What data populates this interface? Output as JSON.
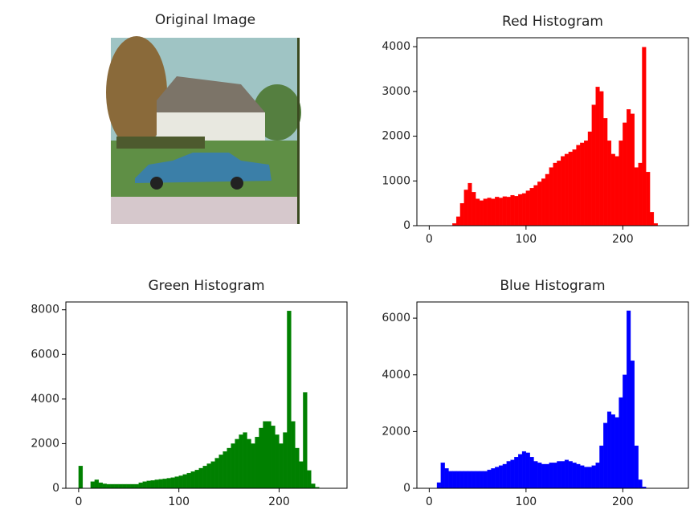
{
  "chart_data": [
    {
      "type": "image",
      "title": "Original Image"
    },
    {
      "type": "histogram",
      "title": "Red Histogram",
      "color": "#ff0000",
      "bins": [
        0,
        4,
        8,
        12,
        16,
        20,
        24,
        28,
        32,
        36,
        40,
        44,
        48,
        52,
        56,
        60,
        64,
        68,
        72,
        76,
        80,
        84,
        88,
        92,
        96,
        100,
        104,
        108,
        112,
        116,
        120,
        124,
        128,
        132,
        136,
        140,
        144,
        148,
        152,
        156,
        160,
        164,
        168,
        172,
        176,
        180,
        184,
        188,
        192,
        196,
        200,
        204,
        208,
        212,
        216,
        220,
        224,
        228,
        232,
        236,
        240,
        244,
        248,
        252,
        256
      ],
      "values": [
        0,
        0,
        0,
        0,
        0,
        0,
        50,
        200,
        500,
        800,
        950,
        750,
        600,
        560,
        600,
        620,
        600,
        640,
        620,
        650,
        640,
        680,
        660,
        700,
        720,
        780,
        840,
        900,
        980,
        1050,
        1150,
        1300,
        1400,
        1450,
        1550,
        1600,
        1650,
        1700,
        1800,
        1850,
        1900,
        2100,
        2700,
        3100,
        3000,
        2400,
        1900,
        1600,
        1550,
        1900,
        2300,
        2600,
        2500,
        1300,
        1400,
        3990,
        1200,
        300,
        50,
        0,
        0,
        0,
        0,
        0
      ],
      "xlim": [
        -12.75,
        267.75
      ],
      "xticks": [
        0,
        100,
        200
      ],
      "ylim": [
        0,
        4200
      ],
      "yticks": [
        0,
        1000,
        2000,
        3000,
        4000
      ]
    },
    {
      "type": "histogram",
      "title": "Green Histogram",
      "color": "#008000",
      "bins": [
        0,
        4,
        8,
        12,
        16,
        20,
        24,
        28,
        32,
        36,
        40,
        44,
        48,
        52,
        56,
        60,
        64,
        68,
        72,
        76,
        80,
        84,
        88,
        92,
        96,
        100,
        104,
        108,
        112,
        116,
        120,
        124,
        128,
        132,
        136,
        140,
        144,
        148,
        152,
        156,
        160,
        164,
        168,
        172,
        176,
        180,
        184,
        188,
        192,
        196,
        200,
        204,
        208,
        212,
        216,
        220,
        224,
        228,
        232,
        236,
        240,
        244,
        248,
        252,
        256
      ],
      "values": [
        1000,
        0,
        0,
        300,
        380,
        250,
        200,
        180,
        180,
        180,
        180,
        180,
        180,
        180,
        180,
        250,
        300,
        330,
        350,
        380,
        400,
        420,
        450,
        480,
        520,
        560,
        620,
        680,
        750,
        820,
        900,
        1000,
        1100,
        1200,
        1350,
        1500,
        1650,
        1800,
        2000,
        2200,
        2400,
        2500,
        2200,
        2000,
        2300,
        2700,
        3000,
        3000,
        2800,
        2400,
        2000,
        2500,
        7950,
        3000,
        1800,
        1200,
        4300,
        800,
        200,
        50,
        0,
        0,
        0,
        0
      ],
      "xlim": [
        -12.75,
        267.75
      ],
      "xticks": [
        0,
        100,
        200
      ],
      "ylim": [
        0,
        8350
      ],
      "yticks": [
        0,
        2000,
        4000,
        6000,
        8000
      ]
    },
    {
      "type": "histogram",
      "title": "Blue Histogram",
      "color": "#0000ff",
      "bins": [
        0,
        4,
        8,
        12,
        16,
        20,
        24,
        28,
        32,
        36,
        40,
        44,
        48,
        52,
        56,
        60,
        64,
        68,
        72,
        76,
        80,
        84,
        88,
        92,
        96,
        100,
        104,
        108,
        112,
        116,
        120,
        124,
        128,
        132,
        136,
        140,
        144,
        148,
        152,
        156,
        160,
        164,
        168,
        172,
        176,
        180,
        184,
        188,
        192,
        196,
        200,
        204,
        208,
        212,
        216,
        220,
        224,
        228,
        232,
        236,
        240,
        244,
        248,
        252,
        256
      ],
      "values": [
        0,
        0,
        200,
        900,
        700,
        600,
        600,
        600,
        600,
        600,
        600,
        600,
        600,
        600,
        600,
        650,
        700,
        750,
        800,
        850,
        950,
        1000,
        1100,
        1200,
        1300,
        1250,
        1100,
        950,
        900,
        850,
        850,
        900,
        900,
        950,
        950,
        1000,
        950,
        900,
        850,
        800,
        750,
        750,
        800,
        900,
        1500,
        2300,
        2700,
        2600,
        2500,
        3200,
        4000,
        6260,
        4500,
        1500,
        300,
        50,
        0,
        0,
        0,
        0,
        0,
        0,
        0,
        0
      ],
      "xlim": [
        -12.75,
        267.75
      ],
      "xticks": [
        0,
        100,
        200
      ],
      "ylim": [
        0,
        6570
      ],
      "yticks": [
        0,
        2000,
        4000,
        6000
      ]
    }
  ]
}
